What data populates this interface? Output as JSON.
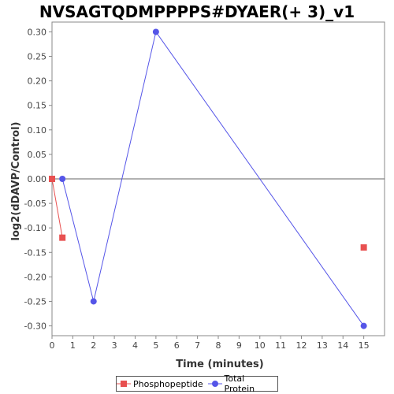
{
  "chart_data": {
    "type": "line",
    "title": "NVSAGTQDMPPPPS#DYAER(+ 3)_v1",
    "xlabel": "Time (minutes)",
    "ylabel": "log2(dDAVP/Control)",
    "xlim": [
      0,
      16
    ],
    "ylim": [
      -0.32,
      0.32
    ],
    "xticks": [
      "0",
      "1",
      "2",
      "3",
      "4",
      "5",
      "6",
      "7",
      "8",
      "9",
      "10",
      "11",
      "12",
      "13",
      "14",
      "15"
    ],
    "yticks": [
      "-0.30",
      "-0.25",
      "-0.20",
      "-0.15",
      "-0.10",
      "-0.05",
      "0.00",
      "0.05",
      "0.10",
      "0.15",
      "0.20",
      "0.25",
      "0.30"
    ],
    "series": [
      {
        "name": "Phosphopeptide",
        "color": "#e85050",
        "marker": "square",
        "segments": [
          [
            [
              0,
              0.0
            ],
            [
              0.5,
              -0.12
            ]
          ],
          [
            [
              15,
              -0.14
            ]
          ]
        ]
      },
      {
        "name": "Total Protein",
        "color": "#5555e8",
        "marker": "circle",
        "segments": [
          [
            [
              0.5,
              0.0
            ],
            [
              2,
              -0.25
            ],
            [
              5,
              0.3
            ],
            [
              15,
              -0.3
            ]
          ]
        ]
      }
    ],
    "zero_line": true,
    "legend_position": "bottom-center"
  },
  "legend": {
    "items": [
      "Phosphopeptide",
      "Total Protein"
    ]
  }
}
